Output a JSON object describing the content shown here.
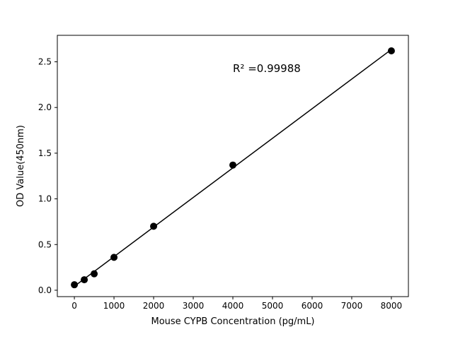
{
  "chart_data": {
    "type": "scatter",
    "title": "",
    "xlabel": "Mouse CYPB Concentration (pg/mL)",
    "ylabel": "OD Value(450nm)",
    "annotation": "R² =0.99988",
    "x": [
      0,
      250,
      500,
      1000,
      2000,
      4000,
      8000
    ],
    "y": [
      0.06,
      0.115,
      0.18,
      0.36,
      0.7,
      1.37,
      2.62
    ],
    "fit_line": true,
    "xticks": [
      0,
      1000,
      2000,
      3000,
      4000,
      5000,
      6000,
      7000,
      8000
    ],
    "xtick_labels": [
      "0",
      "1000",
      "2000",
      "3000",
      "4000",
      "5000",
      "6000",
      "7000",
      "8000"
    ],
    "yticks": [
      0.0,
      0.5,
      1.0,
      1.5,
      2.0,
      2.5
    ],
    "ytick_labels": [
      "0.0",
      "0.5",
      "1.0",
      "1.5",
      "2.0",
      "2.5"
    ],
    "xlim": [
      -430,
      8430
    ],
    "ylim": [
      -0.07,
      2.79
    ],
    "grid": false,
    "legend": null,
    "point_color": "#000000",
    "line_color": "#000000",
    "axis_color": "#000000",
    "background_color": "#ffffff"
  }
}
